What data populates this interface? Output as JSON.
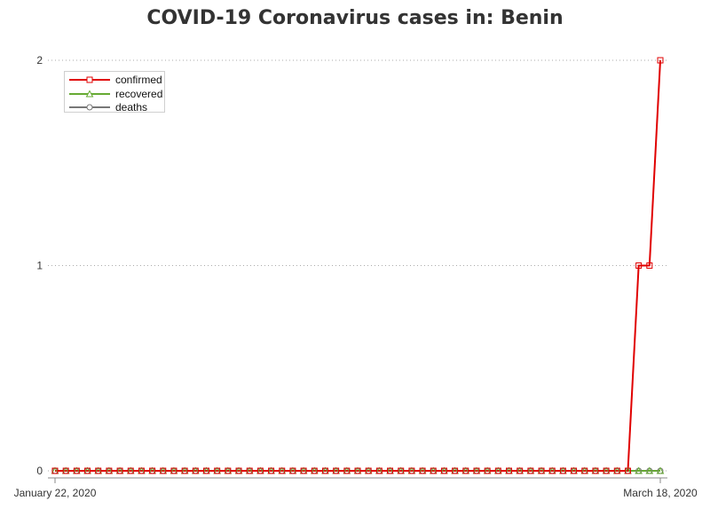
{
  "chart_data": {
    "type": "line",
    "title": "COVID-19 Coronavirus cases in: Benin",
    "x_range": [
      "2020-01-22",
      "2020-03-18"
    ],
    "x_tick_labels": [
      "January 22, 2020",
      "March 18, 2020"
    ],
    "y_ticks": [
      0,
      1,
      2
    ],
    "ylim": [
      0,
      2
    ],
    "grid": "horizontal dotted",
    "legend_placement": "top-left",
    "series": [
      {
        "name": "confirmed",
        "color": "#e00000",
        "marker": "square",
        "start_date": "2020-01-22",
        "values": [
          0,
          0,
          0,
          0,
          0,
          0,
          0,
          0,
          0,
          0,
          0,
          0,
          0,
          0,
          0,
          0,
          0,
          0,
          0,
          0,
          0,
          0,
          0,
          0,
          0,
          0,
          0,
          0,
          0,
          0,
          0,
          0,
          0,
          0,
          0,
          0,
          0,
          0,
          0,
          0,
          0,
          0,
          0,
          0,
          0,
          0,
          0,
          0,
          0,
          0,
          0,
          0,
          0,
          0,
          1,
          1,
          2
        ]
      },
      {
        "name": "recovered",
        "color": "#66aa33",
        "marker": "triangle",
        "start_date": "2020-01-22",
        "values": [
          0,
          0,
          0,
          0,
          0,
          0,
          0,
          0,
          0,
          0,
          0,
          0,
          0,
          0,
          0,
          0,
          0,
          0,
          0,
          0,
          0,
          0,
          0,
          0,
          0,
          0,
          0,
          0,
          0,
          0,
          0,
          0,
          0,
          0,
          0,
          0,
          0,
          0,
          0,
          0,
          0,
          0,
          0,
          0,
          0,
          0,
          0,
          0,
          0,
          0,
          0,
          0,
          0,
          0,
          0,
          0,
          0
        ]
      },
      {
        "name": "deaths",
        "color": "#777777",
        "marker": "circle",
        "start_date": "2020-01-22",
        "values": [
          0,
          0,
          0,
          0,
          0,
          0,
          0,
          0,
          0,
          0,
          0,
          0,
          0,
          0,
          0,
          0,
          0,
          0,
          0,
          0,
          0,
          0,
          0,
          0,
          0,
          0,
          0,
          0,
          0,
          0,
          0,
          0,
          0,
          0,
          0,
          0,
          0,
          0,
          0,
          0,
          0,
          0,
          0,
          0,
          0,
          0,
          0,
          0,
          0,
          0,
          0,
          0,
          0,
          0,
          0,
          0,
          0
        ]
      }
    ]
  }
}
